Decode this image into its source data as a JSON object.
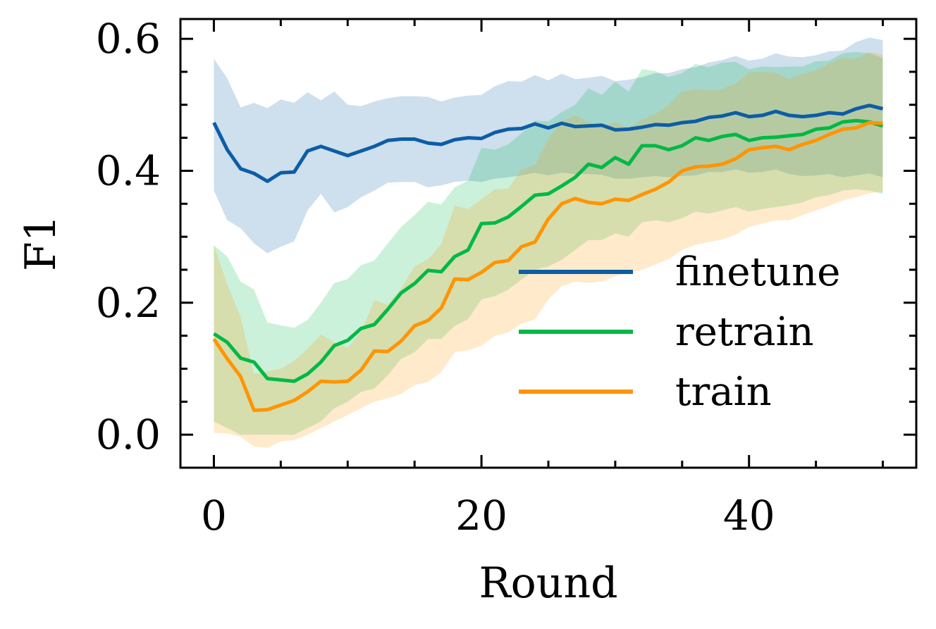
{
  "chart_data": {
    "type": "line",
    "title": "",
    "xlabel": "Round",
    "ylabel": "F1",
    "xlim": [
      -2.5,
      52.5
    ],
    "ylim": [
      -0.05,
      0.63
    ],
    "xticks": [
      0,
      20,
      40
    ],
    "xtick_labels": [
      "0",
      "20",
      "40"
    ],
    "yticks": [
      0.0,
      0.2,
      0.4,
      0.6
    ],
    "ytick_labels": [
      "0.0",
      "0.2",
      "0.4",
      "0.6"
    ],
    "grid": false,
    "legend_position": "center-right",
    "x": [
      0,
      1,
      2,
      3,
      4,
      5,
      6,
      7,
      8,
      9,
      10,
      11,
      12,
      13,
      14,
      15,
      16,
      17,
      18,
      19,
      20,
      21,
      22,
      23,
      24,
      25,
      26,
      27,
      28,
      29,
      30,
      31,
      32,
      33,
      34,
      35,
      36,
      37,
      38,
      39,
      40,
      41,
      42,
      43,
      44,
      45,
      46,
      47,
      48,
      49,
      50
    ],
    "series": [
      {
        "name": "finetune",
        "color": "#0C5DA5",
        "values": [
          0.473,
          0.432,
          0.403,
          0.396,
          0.384,
          0.397,
          0.398,
          0.43,
          0.437,
          0.43,
          0.423,
          0.43,
          0.437,
          0.446,
          0.448,
          0.448,
          0.442,
          0.44,
          0.447,
          0.45,
          0.449,
          0.458,
          0.463,
          0.464,
          0.471,
          0.465,
          0.472,
          0.467,
          0.468,
          0.469,
          0.462,
          0.463,
          0.466,
          0.47,
          0.469,
          0.473,
          0.475,
          0.481,
          0.483,
          0.488,
          0.482,
          0.484,
          0.49,
          0.484,
          0.482,
          0.484,
          0.488,
          0.486,
          0.494,
          0.499,
          0.494
        ],
        "lower": [
          0.37,
          0.325,
          0.313,
          0.29,
          0.275,
          0.285,
          0.293,
          0.34,
          0.365,
          0.337,
          0.345,
          0.36,
          0.37,
          0.382,
          0.383,
          0.383,
          0.375,
          0.378,
          0.383,
          0.385,
          0.383,
          0.388,
          0.39,
          0.393,
          0.397,
          0.393,
          0.397,
          0.395,
          0.395,
          0.394,
          0.388,
          0.388,
          0.39,
          0.392,
          0.39,
          0.392,
          0.393,
          0.398,
          0.398,
          0.402,
          0.397,
          0.398,
          0.402,
          0.395,
          0.392,
          0.393,
          0.395,
          0.39,
          0.393,
          0.396,
          0.39
        ],
        "upper": [
          0.57,
          0.54,
          0.496,
          0.503,
          0.495,
          0.508,
          0.503,
          0.519,
          0.507,
          0.52,
          0.5,
          0.498,
          0.505,
          0.51,
          0.513,
          0.513,
          0.512,
          0.505,
          0.511,
          0.514,
          0.515,
          0.528,
          0.536,
          0.535,
          0.545,
          0.537,
          0.547,
          0.539,
          0.541,
          0.544,
          0.536,
          0.538,
          0.542,
          0.548,
          0.548,
          0.554,
          0.557,
          0.564,
          0.568,
          0.574,
          0.567,
          0.57,
          0.578,
          0.573,
          0.572,
          0.575,
          0.581,
          0.582,
          0.595,
          0.602,
          0.598
        ]
      },
      {
        "name": "retrain",
        "color": "#00B945",
        "values": [
          0.153,
          0.14,
          0.116,
          0.11,
          0.085,
          0.083,
          0.081,
          0.092,
          0.11,
          0.135,
          0.143,
          0.161,
          0.167,
          0.19,
          0.215,
          0.229,
          0.249,
          0.247,
          0.27,
          0.28,
          0.32,
          0.321,
          0.33,
          0.346,
          0.363,
          0.365,
          0.377,
          0.39,
          0.41,
          0.405,
          0.42,
          0.41,
          0.438,
          0.438,
          0.432,
          0.438,
          0.45,
          0.446,
          0.452,
          0.455,
          0.446,
          0.45,
          0.451,
          0.453,
          0.455,
          0.463,
          0.465,
          0.474,
          0.476,
          0.474,
          0.468
        ],
        "lower": [
          0.02,
          0.01,
          0.0,
          0.0,
          0.0,
          0.0,
          0.0,
          0.01,
          0.02,
          0.04,
          0.05,
          0.065,
          0.07,
          0.09,
          0.115,
          0.125,
          0.145,
          0.145,
          0.165,
          0.175,
          0.205,
          0.21,
          0.22,
          0.235,
          0.25,
          0.255,
          0.265,
          0.28,
          0.295,
          0.295,
          0.305,
          0.3,
          0.322,
          0.325,
          0.322,
          0.328,
          0.338,
          0.335,
          0.34,
          0.345,
          0.338,
          0.342,
          0.345,
          0.348,
          0.352,
          0.36,
          0.363,
          0.37,
          0.372,
          0.37,
          0.365
        ],
        "upper": [
          0.287,
          0.27,
          0.232,
          0.22,
          0.17,
          0.166,
          0.162,
          0.174,
          0.2,
          0.23,
          0.236,
          0.257,
          0.264,
          0.29,
          0.315,
          0.333,
          0.353,
          0.349,
          0.375,
          0.385,
          0.435,
          0.432,
          0.44,
          0.457,
          0.476,
          0.475,
          0.489,
          0.5,
          0.525,
          0.515,
          0.535,
          0.52,
          0.554,
          0.551,
          0.542,
          0.548,
          0.562,
          0.557,
          0.564,
          0.565,
          0.554,
          0.558,
          0.557,
          0.558,
          0.558,
          0.566,
          0.567,
          0.578,
          0.58,
          0.578,
          0.571
        ]
      },
      {
        "name": "train",
        "color": "#FF9500",
        "values": [
          0.145,
          0.115,
          0.088,
          0.037,
          0.038,
          0.045,
          0.052,
          0.065,
          0.081,
          0.08,
          0.081,
          0.098,
          0.127,
          0.126,
          0.142,
          0.165,
          0.173,
          0.192,
          0.236,
          0.235,
          0.246,
          0.261,
          0.264,
          0.285,
          0.292,
          0.327,
          0.35,
          0.358,
          0.352,
          0.35,
          0.357,
          0.355,
          0.364,
          0.372,
          0.383,
          0.4,
          0.406,
          0.407,
          0.41,
          0.418,
          0.432,
          0.435,
          0.437,
          0.432,
          0.44,
          0.446,
          0.455,
          0.463,
          0.465,
          0.473,
          0.472
        ],
        "lower": [
          0.003,
          0.002,
          -0.003,
          -0.018,
          -0.02,
          -0.01,
          -0.008,
          0.0,
          0.01,
          0.02,
          0.03,
          0.04,
          0.05,
          0.055,
          0.062,
          0.075,
          0.08,
          0.095,
          0.125,
          0.128,
          0.135,
          0.15,
          0.155,
          0.168,
          0.175,
          0.205,
          0.225,
          0.232,
          0.23,
          0.232,
          0.24,
          0.245,
          0.25,
          0.258,
          0.266,
          0.28,
          0.288,
          0.292,
          0.296,
          0.303,
          0.315,
          0.32,
          0.325,
          0.325,
          0.333,
          0.34,
          0.347,
          0.355,
          0.36,
          0.366,
          0.368
        ],
        "upper": [
          0.287,
          0.228,
          0.179,
          0.092,
          0.096,
          0.1,
          0.112,
          0.13,
          0.152,
          0.14,
          0.132,
          0.156,
          0.204,
          0.197,
          0.222,
          0.255,
          0.266,
          0.289,
          0.347,
          0.342,
          0.357,
          0.372,
          0.373,
          0.402,
          0.409,
          0.449,
          0.475,
          0.484,
          0.474,
          0.468,
          0.474,
          0.465,
          0.478,
          0.486,
          0.5,
          0.52,
          0.524,
          0.522,
          0.524,
          0.533,
          0.549,
          0.55,
          0.549,
          0.539,
          0.547,
          0.552,
          0.563,
          0.571,
          0.57,
          0.58,
          0.576
        ]
      }
    ]
  }
}
